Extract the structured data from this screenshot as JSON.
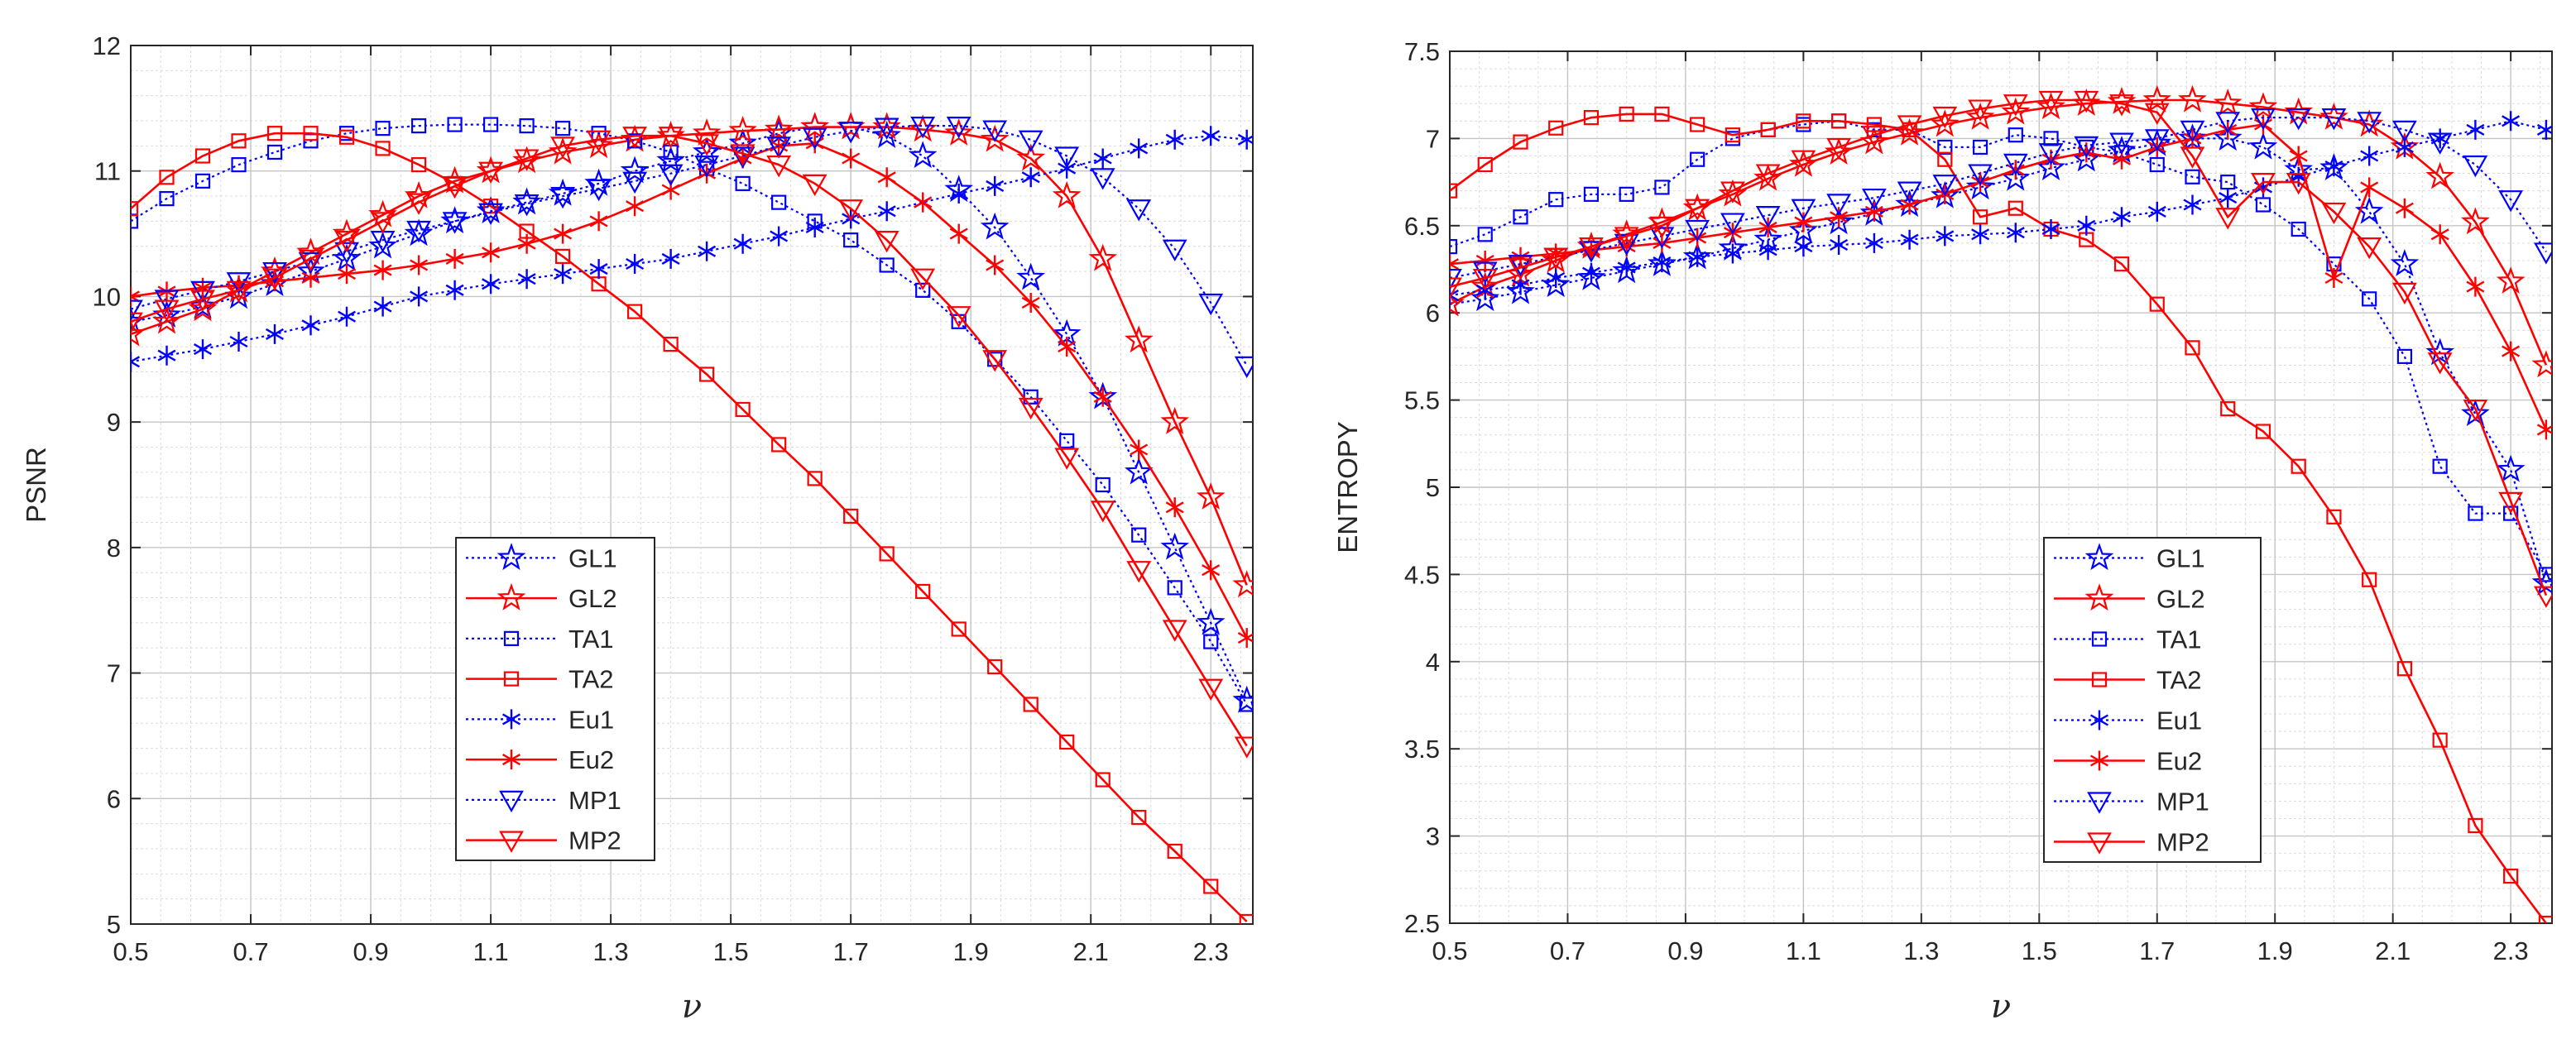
{
  "chart_data": [
    {
      "type": "line",
      "title": "",
      "xlabel": "ν",
      "ylabel": "PSNR",
      "xlim": [
        0.5,
        2.37
      ],
      "ylim": [
        5,
        12
      ],
      "grid": true,
      "legend_position": "bottom-center",
      "xticks": [
        0.5,
        0.7,
        0.9,
        1.1,
        1.3,
        1.5,
        1.7,
        1.9,
        2.1,
        2.3
      ],
      "xtick_labels": [
        "0.5",
        "0.7",
        "0.9",
        "1.1",
        "1.3",
        "1.5",
        "1.7",
        "1.9",
        "2.1",
        "2.3"
      ],
      "yticks": [
        5,
        6,
        7,
        8,
        9,
        10,
        11,
        12
      ],
      "ytick_labels": [
        "5",
        "6",
        "7",
        "8",
        "9",
        "10",
        "11",
        "12"
      ],
      "x": [
        0.5,
        0.56,
        0.62,
        0.68,
        0.74,
        0.8,
        0.86,
        0.92,
        0.98,
        1.04,
        1.1,
        1.16,
        1.22,
        1.28,
        1.34,
        1.4,
        1.46,
        1.52,
        1.58,
        1.64,
        1.7,
        1.76,
        1.82,
        1.88,
        1.94,
        2.0,
        2.06,
        2.12,
        2.18,
        2.24,
        2.3,
        2.36
      ],
      "series": [
        {
          "name": "GL1",
          "color": "#0000ff",
          "dashed": true,
          "marker": "star5",
          "values": [
            9.8,
            9.85,
            9.92,
            10.0,
            10.1,
            10.2,
            10.3,
            10.4,
            10.5,
            10.6,
            10.68,
            10.75,
            10.82,
            10.9,
            11.0,
            11.08,
            11.15,
            11.22,
            11.3,
            11.35,
            11.35,
            11.28,
            11.12,
            10.85,
            10.55,
            10.15,
            9.7,
            9.2,
            8.6,
            8.0,
            7.4,
            6.78
          ]
        },
        {
          "name": "GL2",
          "color": "#ff0000",
          "dashed": false,
          "marker": "star5",
          "values": [
            9.7,
            9.8,
            9.9,
            10.05,
            10.2,
            10.35,
            10.5,
            10.65,
            10.8,
            10.92,
            11.0,
            11.08,
            11.15,
            11.2,
            11.25,
            11.28,
            11.3,
            11.32,
            11.33,
            11.35,
            11.35,
            11.35,
            11.33,
            11.3,
            11.25,
            11.1,
            10.8,
            10.3,
            9.65,
            9.0,
            8.4,
            7.7
          ]
        },
        {
          "name": "TA1",
          "color": "#0000ff",
          "dashed": true,
          "marker": "square",
          "values": [
            10.6,
            10.78,
            10.92,
            11.05,
            11.15,
            11.24,
            11.3,
            11.34,
            11.36,
            11.37,
            11.37,
            11.36,
            11.34,
            11.3,
            11.24,
            11.15,
            11.02,
            10.9,
            10.75,
            10.6,
            10.45,
            10.25,
            10.05,
            9.8,
            9.5,
            9.2,
            8.85,
            8.5,
            8.1,
            7.68,
            7.25,
            6.75
          ]
        },
        {
          "name": "TA2",
          "color": "#ff0000",
          "dashed": false,
          "marker": "square",
          "values": [
            10.7,
            10.95,
            11.12,
            11.24,
            11.3,
            11.3,
            11.27,
            11.18,
            11.05,
            10.9,
            10.72,
            10.52,
            10.32,
            10.1,
            9.88,
            9.62,
            9.38,
            9.1,
            8.82,
            8.55,
            8.25,
            7.95,
            7.65,
            7.35,
            7.05,
            6.75,
            6.45,
            6.15,
            5.85,
            5.58,
            5.3,
            5.02
          ]
        },
        {
          "name": "Eu1",
          "color": "#0000ff",
          "dashed": true,
          "marker": "asterisk",
          "values": [
            9.48,
            9.53,
            9.58,
            9.64,
            9.7,
            9.77,
            9.84,
            9.92,
            10.0,
            10.05,
            10.1,
            10.14,
            10.18,
            10.22,
            10.26,
            10.3,
            10.36,
            10.42,
            10.48,
            10.55,
            10.62,
            10.68,
            10.75,
            10.82,
            10.88,
            10.95,
            11.02,
            11.1,
            11.18,
            11.25,
            11.28,
            11.25
          ]
        },
        {
          "name": "Eu2",
          "color": "#ff0000",
          "dashed": false,
          "marker": "asterisk",
          "values": [
            10.0,
            10.04,
            10.07,
            10.09,
            10.12,
            10.15,
            10.18,
            10.21,
            10.25,
            10.3,
            10.35,
            10.42,
            10.5,
            10.6,
            10.72,
            10.85,
            10.98,
            11.1,
            11.2,
            11.22,
            11.1,
            10.95,
            10.75,
            10.5,
            10.25,
            9.95,
            9.6,
            9.2,
            8.78,
            8.32,
            7.82,
            7.28
          ]
        },
        {
          "name": "MP1",
          "color": "#0000ff",
          "dashed": true,
          "marker": "triangle-down",
          "values": [
            9.9,
            9.98,
            10.05,
            10.12,
            10.2,
            10.28,
            10.36,
            10.45,
            10.53,
            10.6,
            10.67,
            10.74,
            10.8,
            10.86,
            10.92,
            10.98,
            11.05,
            11.12,
            11.2,
            11.27,
            11.32,
            11.35,
            11.36,
            11.36,
            11.33,
            11.25,
            11.12,
            10.95,
            10.7,
            10.38,
            9.95,
            9.45
          ]
        },
        {
          "name": "MP2",
          "color": "#ff0000",
          "dashed": false,
          "marker": "triangle-down",
          "values": [
            9.8,
            9.9,
            9.98,
            10.05,
            10.15,
            10.3,
            10.45,
            10.6,
            10.75,
            10.88,
            11.0,
            11.1,
            11.2,
            11.25,
            11.28,
            11.28,
            11.22,
            11.14,
            11.05,
            10.9,
            10.7,
            10.45,
            10.15,
            9.85,
            9.5,
            9.12,
            8.72,
            8.3,
            7.82,
            7.35,
            6.88,
            6.42
          ]
        }
      ]
    },
    {
      "type": "line",
      "title": "",
      "xlabel": "ν",
      "ylabel": "ENTROPY",
      "xlim": [
        0.5,
        2.37
      ],
      "ylim": [
        2.5,
        7.5
      ],
      "grid": true,
      "legend_position": "bottom-center",
      "xticks": [
        0.5,
        0.7,
        0.9,
        1.1,
        1.3,
        1.5,
        1.7,
        1.9,
        2.1,
        2.3
      ],
      "xtick_labels": [
        "0.5",
        "0.7",
        "0.9",
        "1.1",
        "1.3",
        "1.5",
        "1.7",
        "1.9",
        "2.1",
        "2.3"
      ],
      "yticks": [
        2.5,
        3,
        3.5,
        4,
        4.5,
        5,
        5.5,
        6,
        6.5,
        7,
        7.5
      ],
      "ytick_labels": [
        "2.5",
        "3",
        "3.5",
        "4",
        "4.5",
        "5",
        "5.5",
        "6",
        "6.5",
        "7",
        "7.5"
      ],
      "x": [
        0.5,
        0.56,
        0.62,
        0.68,
        0.74,
        0.8,
        0.86,
        0.92,
        0.98,
        1.04,
        1.1,
        1.16,
        1.22,
        1.28,
        1.34,
        1.4,
        1.46,
        1.52,
        1.58,
        1.64,
        1.7,
        1.76,
        1.82,
        1.88,
        1.94,
        2.0,
        2.06,
        2.12,
        2.18,
        2.24,
        2.3,
        2.36
      ],
      "series": [
        {
          "name": "GL1",
          "color": "#0000ff",
          "dashed": true,
          "marker": "star5",
          "values": [
            6.05,
            6.08,
            6.12,
            6.16,
            6.2,
            6.24,
            6.28,
            6.32,
            6.37,
            6.42,
            6.47,
            6.52,
            6.57,
            6.62,
            6.67,
            6.72,
            6.77,
            6.83,
            6.88,
            6.93,
            6.97,
            7.0,
            7.0,
            6.95,
            6.82,
            6.83,
            6.58,
            6.28,
            5.77,
            5.42,
            5.1,
            4.45
          ]
        },
        {
          "name": "GL2",
          "color": "#ff0000",
          "dashed": false,
          "marker": "star5",
          "values": [
            6.05,
            6.15,
            6.22,
            6.3,
            6.38,
            6.45,
            6.52,
            6.6,
            6.68,
            6.77,
            6.85,
            6.92,
            6.98,
            7.03,
            7.08,
            7.12,
            7.15,
            7.18,
            7.2,
            7.21,
            7.22,
            7.22,
            7.2,
            7.18,
            7.15,
            7.12,
            7.08,
            6.95,
            6.78,
            6.52,
            6.18,
            5.7
          ]
        },
        {
          "name": "TA1",
          "color": "#0000ff",
          "dashed": true,
          "marker": "square",
          "values": [
            6.38,
            6.45,
            6.55,
            6.65,
            6.68,
            6.68,
            6.72,
            6.88,
            7.0,
            7.05,
            7.08,
            7.1,
            7.05,
            7.05,
            6.95,
            6.95,
            7.02,
            7.0,
            6.95,
            6.92,
            6.85,
            6.78,
            6.75,
            6.62,
            6.48,
            6.28,
            6.08,
            5.75,
            5.12,
            4.85,
            4.85,
            4.5
          ]
        },
        {
          "name": "TA2",
          "color": "#ff0000",
          "dashed": false,
          "marker": "square",
          "values": [
            6.7,
            6.85,
            6.98,
            7.06,
            7.12,
            7.14,
            7.14,
            7.08,
            7.02,
            7.05,
            7.1,
            7.1,
            7.08,
            7.05,
            6.88,
            6.55,
            6.6,
            6.48,
            6.42,
            6.28,
            6.05,
            5.8,
            5.45,
            5.32,
            5.12,
            4.83,
            4.47,
            3.96,
            3.55,
            3.06,
            2.77,
            2.5
          ]
        },
        {
          "name": "Eu1",
          "color": "#0000ff",
          "dashed": true,
          "marker": "asterisk",
          "values": [
            6.1,
            6.13,
            6.16,
            6.2,
            6.23,
            6.26,
            6.29,
            6.32,
            6.34,
            6.36,
            6.38,
            6.39,
            6.4,
            6.42,
            6.44,
            6.45,
            6.46,
            6.48,
            6.5,
            6.55,
            6.58,
            6.62,
            6.66,
            6.72,
            6.78,
            6.84,
            6.9,
            6.95,
            7.0,
            7.05,
            7.1,
            7.05
          ]
        },
        {
          "name": "Eu2",
          "color": "#ff0000",
          "dashed": false,
          "marker": "asterisk",
          "values": [
            6.28,
            6.3,
            6.32,
            6.34,
            6.36,
            6.38,
            6.4,
            6.43,
            6.46,
            6.49,
            6.52,
            6.55,
            6.58,
            6.62,
            6.68,
            6.75,
            6.82,
            6.88,
            6.92,
            6.88,
            6.95,
            7.0,
            7.05,
            7.08,
            6.9,
            6.2,
            6.72,
            6.6,
            6.45,
            6.15,
            5.78,
            5.33
          ]
        },
        {
          "name": "MP1",
          "color": "#0000ff",
          "dashed": true,
          "marker": "triangle-down",
          "values": [
            6.2,
            6.24,
            6.28,
            6.32,
            6.36,
            6.4,
            6.44,
            6.48,
            6.52,
            6.56,
            6.6,
            6.63,
            6.66,
            6.7,
            6.74,
            6.8,
            6.86,
            6.92,
            6.96,
            6.98,
            7.0,
            7.05,
            7.1,
            7.12,
            7.12,
            7.12,
            7.1,
            7.05,
            6.98,
            6.85,
            6.65,
            6.35
          ]
        },
        {
          "name": "MP2",
          "color": "#ff0000",
          "dashed": false,
          "marker": "triangle-down",
          "values": [
            6.15,
            6.2,
            6.26,
            6.32,
            6.38,
            6.44,
            6.5,
            6.6,
            6.7,
            6.8,
            6.88,
            6.95,
            7.02,
            7.08,
            7.13,
            7.17,
            7.2,
            7.22,
            7.22,
            7.2,
            7.15,
            6.9,
            6.55,
            6.75,
            6.75,
            6.58,
            6.38,
            6.12,
            5.72,
            5.45,
            4.92,
            4.38
          ]
        }
      ]
    }
  ]
}
